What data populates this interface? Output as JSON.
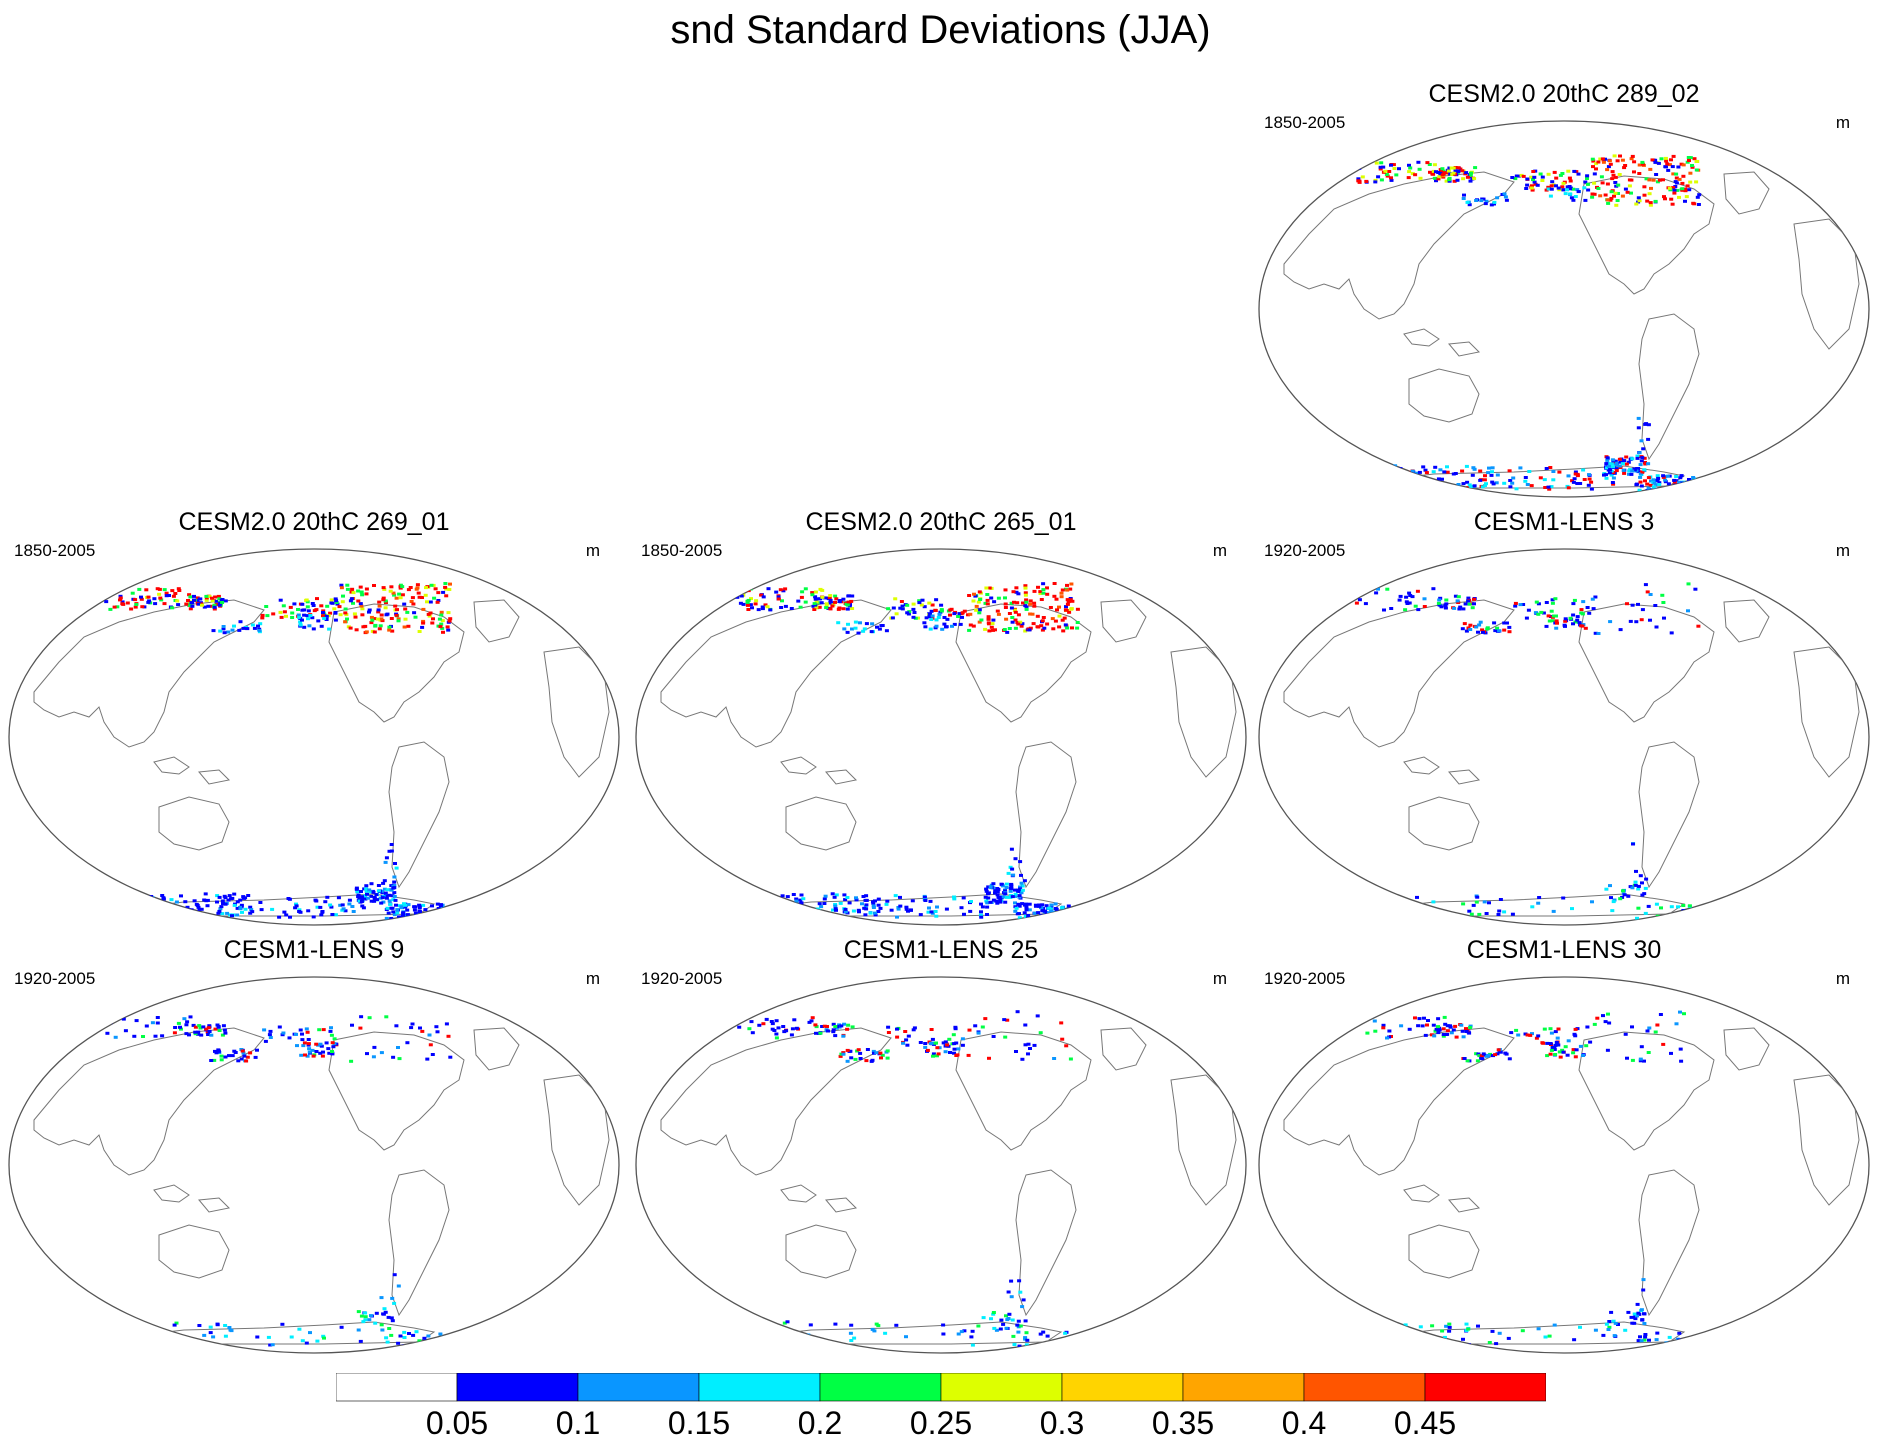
{
  "title": "snd Standard Deviations (JJA)",
  "panels": [
    {
      "title": "CESM2.0 20thC 289_02",
      "left": "1850-2005",
      "right": "m",
      "intensity": "high"
    },
    {
      "title": "CESM2.0 20thC 269_01",
      "left": "1850-2005",
      "right": "m",
      "intensity": "high"
    },
    {
      "title": "CESM2.0 20thC 265_01",
      "left": "1850-2005",
      "right": "m",
      "intensity": "high"
    },
    {
      "title": "CESM1-LENS 3",
      "left": "1920-2005",
      "right": "m",
      "intensity": "low"
    },
    {
      "title": "CESM1-LENS 9",
      "left": "1920-2005",
      "right": "m",
      "intensity": "low"
    },
    {
      "title": "CESM1-LENS 25",
      "left": "1920-2005",
      "right": "m",
      "intensity": "low"
    },
    {
      "title": "CESM1-LENS 30",
      "left": "1920-2005",
      "right": "m",
      "intensity": "low"
    }
  ],
  "colorbar": {
    "labels": [
      "0.05",
      "0.1",
      "0.15",
      "0.2",
      "0.25",
      "0.3",
      "0.35",
      "0.4",
      "0.45"
    ],
    "colors": [
      "#ffffff",
      "#0000ff",
      "#0a96ff",
      "#00eeff",
      "#00ff44",
      "#ddff00",
      "#ffd400",
      "#ffa500",
      "#ff5500",
      "#ff0000"
    ]
  }
}
